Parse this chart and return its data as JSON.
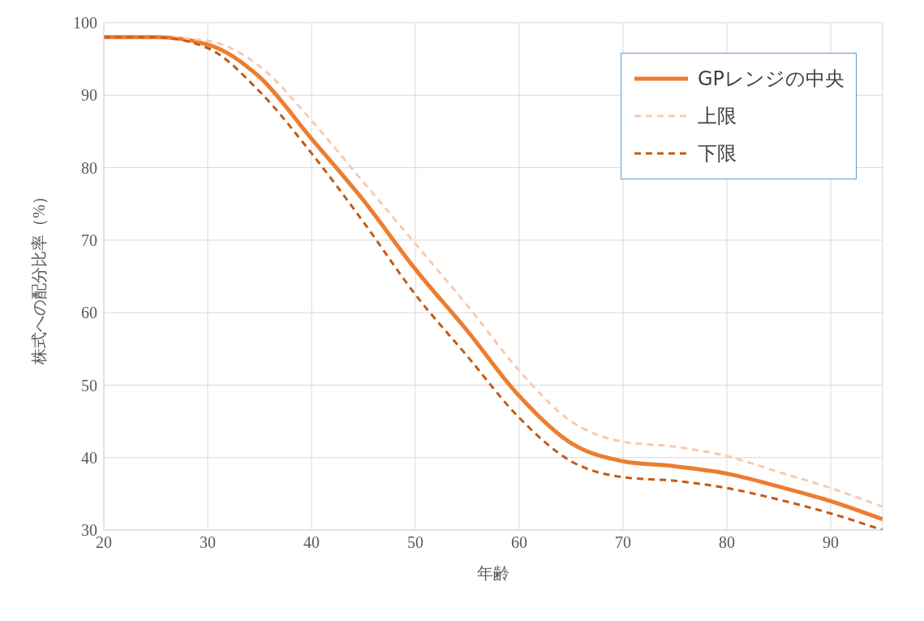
{
  "chart_data": {
    "type": "line",
    "xlabel": "年齢",
    "ylabel": "株式への配分比率（%）",
    "x": [
      20,
      25,
      30,
      35,
      40,
      45,
      50,
      55,
      60,
      65,
      70,
      75,
      80,
      85,
      90,
      95
    ],
    "series": [
      {
        "name": "GPレンジの中央",
        "color": "#ed7d31",
        "line_style": "solid",
        "values": [
          98,
          98,
          97,
          92.5,
          84,
          75.5,
          66,
          57.5,
          48.5,
          42,
          39.5,
          38.8,
          37.8,
          36,
          34,
          31.5
        ]
      },
      {
        "name": "上限",
        "color": "#f8cbad",
        "line_style": "dashed",
        "values": [
          98,
          98,
          97.5,
          94,
          86.5,
          78,
          69.5,
          61,
          52,
          45,
          42.2,
          41.5,
          40.2,
          38,
          35.8,
          33.2
        ]
      },
      {
        "name": "下限",
        "color": "#c55a11",
        "line_style": "dashed",
        "values": [
          98,
          98,
          96.5,
          90.5,
          82,
          72.5,
          62.5,
          54,
          45.5,
          39.5,
          37.3,
          36.8,
          35.8,
          34.2,
          32.3,
          30
        ]
      }
    ],
    "xlim": [
      20,
      95
    ],
    "xticks": [
      20,
      30,
      40,
      50,
      60,
      70,
      80,
      90
    ],
    "ylim": [
      30,
      100
    ],
    "yticks": [
      30,
      40,
      50,
      60,
      70,
      80,
      90,
      100
    ],
    "grid": true,
    "legend": "top right",
    "marker": "none"
  }
}
